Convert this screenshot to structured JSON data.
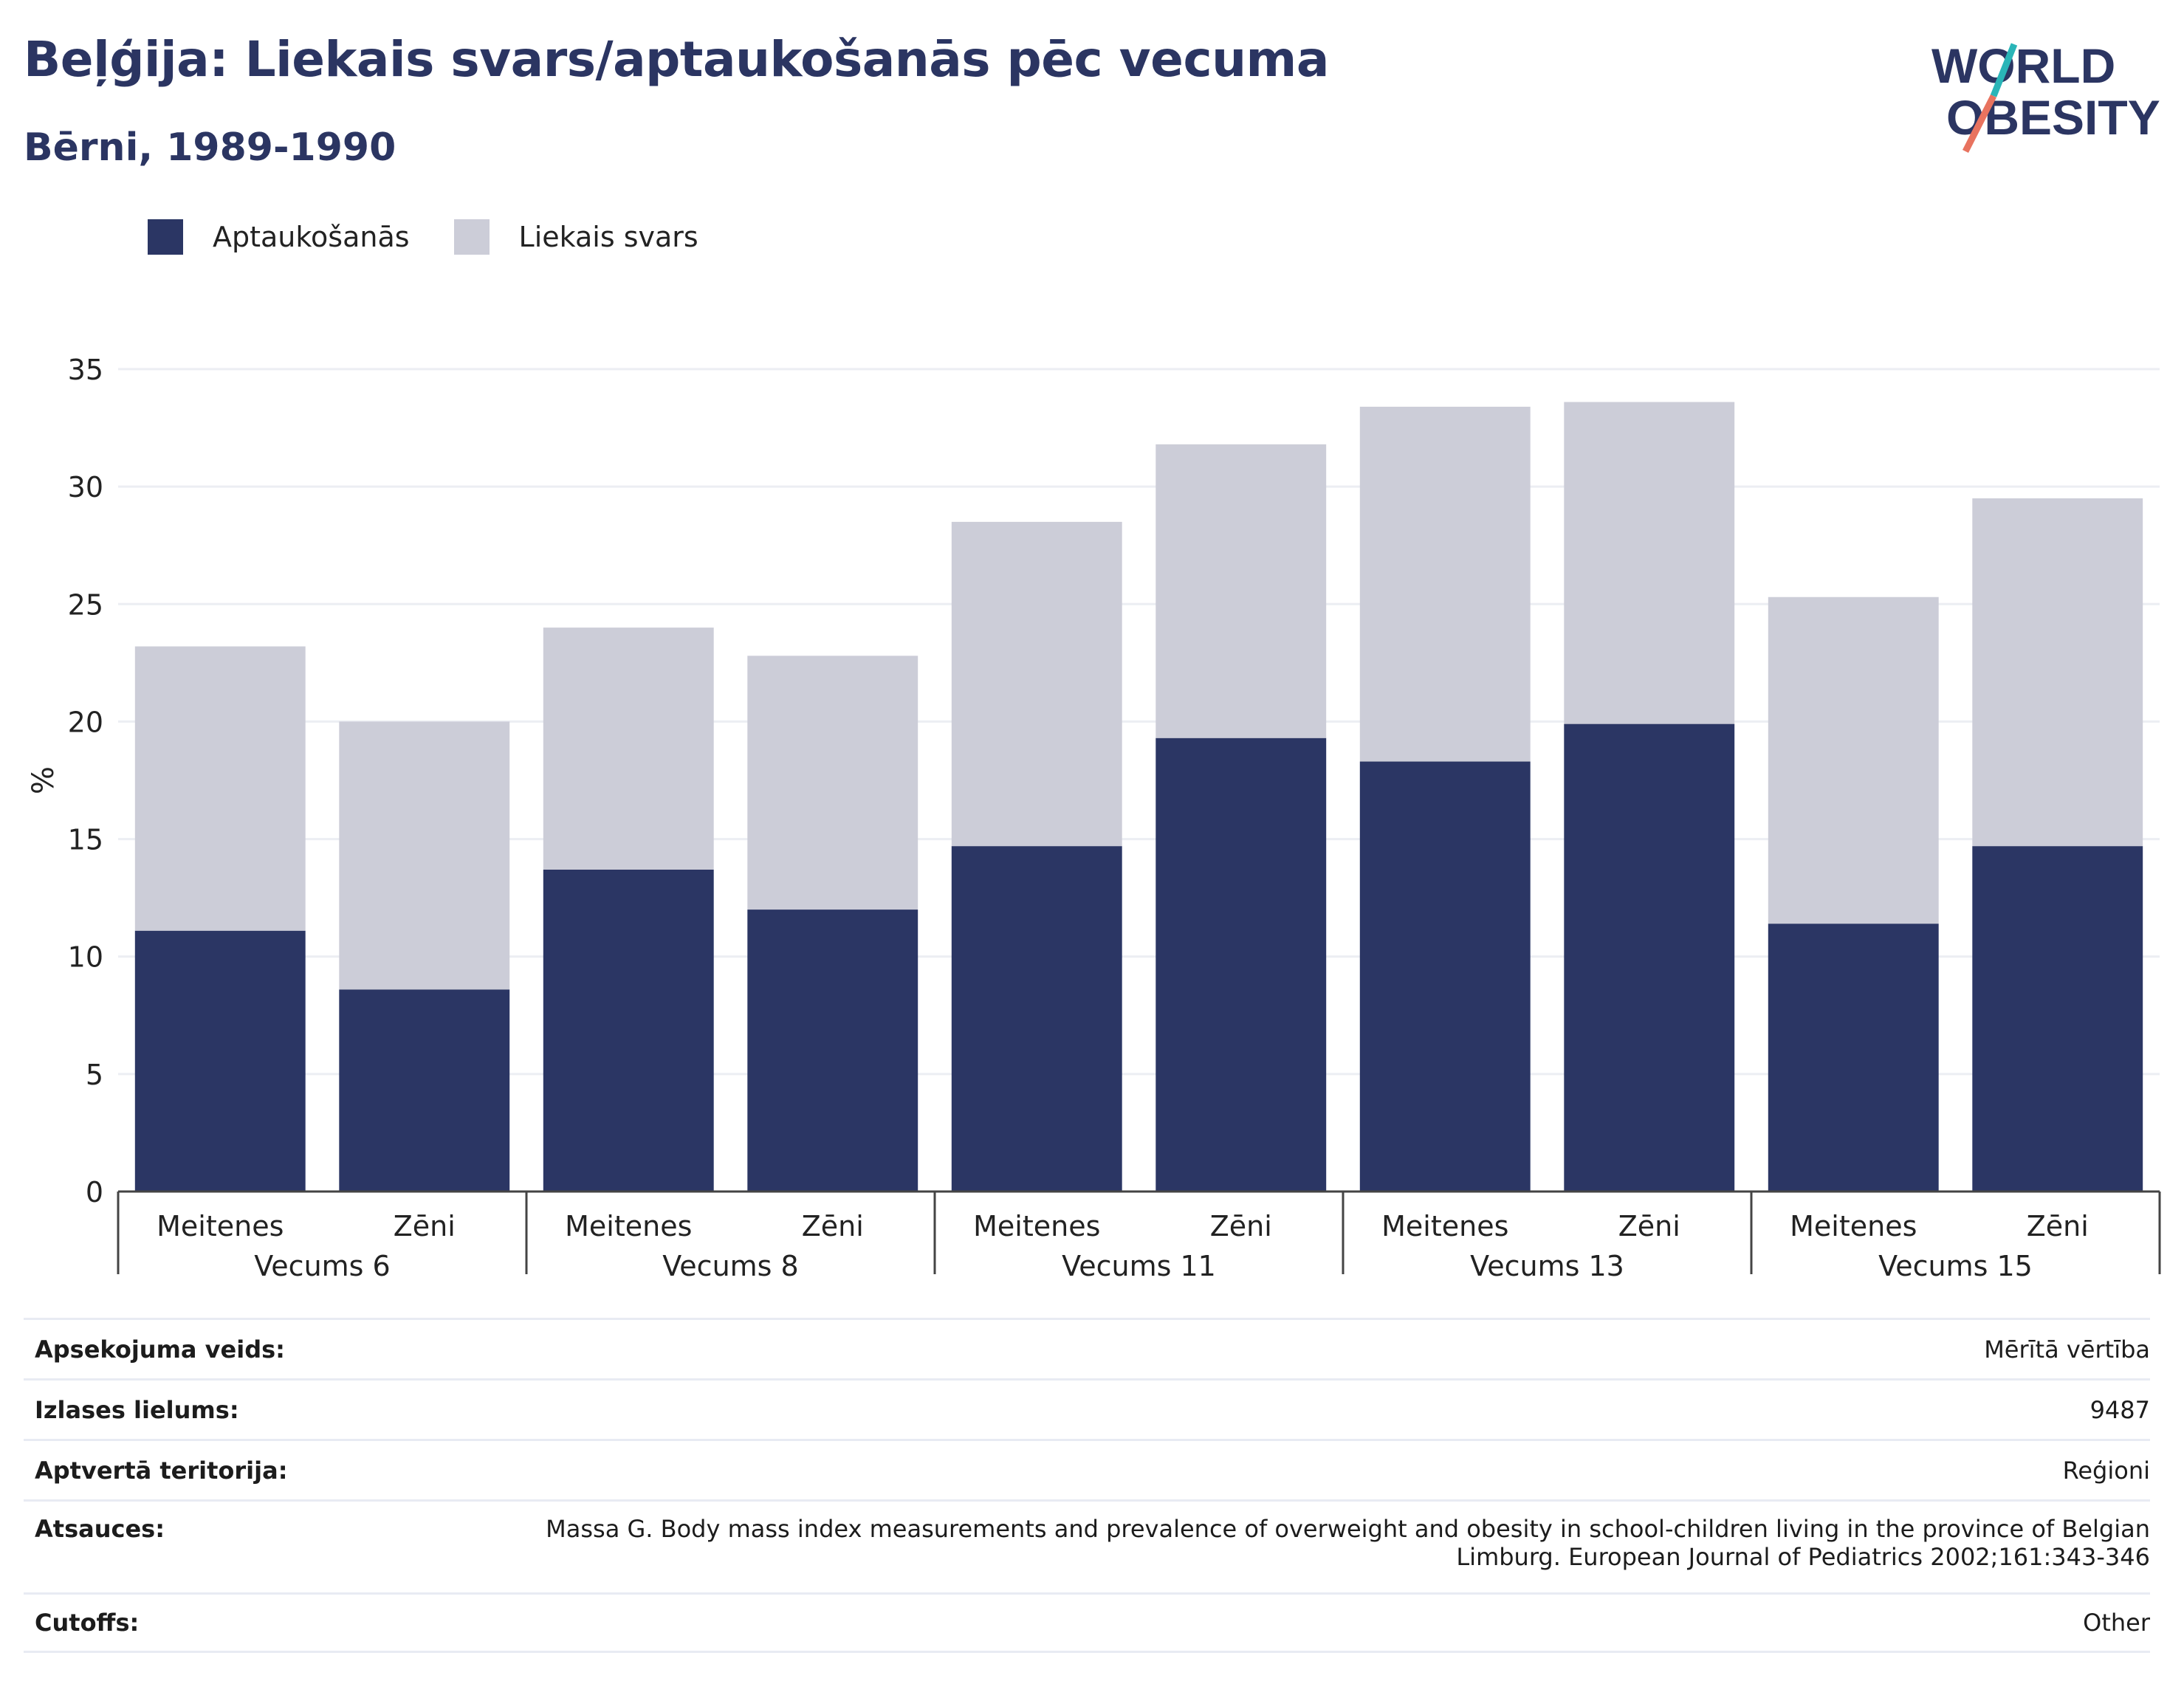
{
  "header": {
    "title": "Beļģija: Liekais svars/aptaukošanās pēc vecuma",
    "subtitle": "Bērni, 1989-1990"
  },
  "logo": {
    "line1": "WORLD",
    "line2": "OBESITY"
  },
  "colors": {
    "obesity": "#2b3664",
    "overweight": "#cccdd8",
    "title": "#2b3562",
    "logo_teal": "#2ab5b8",
    "logo_coral": "#e8735f"
  },
  "chart_data": {
    "type": "bar",
    "stacked": true,
    "ylabel": "%",
    "ylim": [
      0,
      35
    ],
    "yticks": [
      0,
      5,
      10,
      15,
      20,
      25,
      30,
      35
    ],
    "grid": true,
    "legend_position": "top-left",
    "groups": [
      "Vecums 6",
      "Vecums 8",
      "Vecums 11",
      "Vecums 13",
      "Vecums 15"
    ],
    "categories": [
      "Meitenes",
      "Zēni",
      "Meitenes",
      "Zēni",
      "Meitenes",
      "Zēni",
      "Meitenes",
      "Zēni",
      "Meitenes",
      "Zēni"
    ],
    "series": [
      {
        "name": "Aptaukošanās",
        "values": [
          11.1,
          8.6,
          13.7,
          12.0,
          14.7,
          19.3,
          18.3,
          19.9,
          11.4,
          14.7
        ]
      },
      {
        "name": "Liekais svars",
        "values": [
          12.1,
          11.4,
          10.3,
          10.8,
          13.8,
          12.5,
          15.1,
          13.7,
          13.9,
          14.8
        ]
      }
    ]
  },
  "meta": [
    {
      "label": "Apsekojuma veids:",
      "value": "Mērītā vērtība"
    },
    {
      "label": "Izlases lielums:",
      "value": "9487"
    },
    {
      "label": "Aptvertā teritorija:",
      "value": "Reģioni"
    },
    {
      "label": "Atsauces:",
      "value": "Massa G. Body mass index measurements and prevalence of overweight and obesity in school-children living in the province of Belgian\nLimburg. European Journal of Pediatrics 2002;161:343-346"
    },
    {
      "label": "Cutoffs:",
      "value": "Other"
    }
  ]
}
